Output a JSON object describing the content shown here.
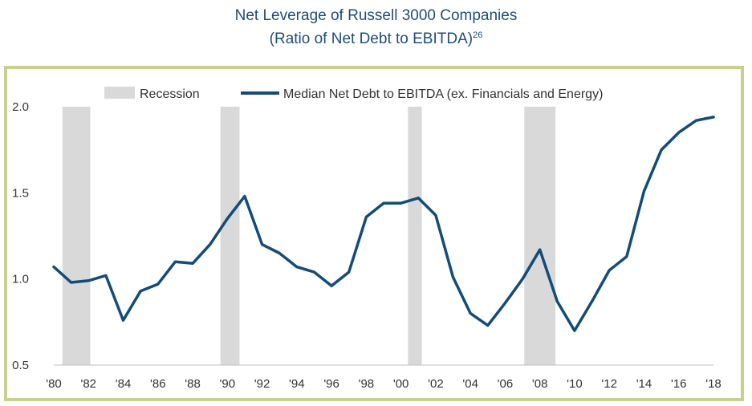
{
  "title_line1": "Net Leverage of Russell 3000 Companies",
  "title_line2": "(Ratio of Net Debt to EBITDA)",
  "title_superscript": "26",
  "chart_data": {
    "type": "line",
    "title": "Net Leverage of Russell 3000 Companies",
    "subtitle": "(Ratio of Net Debt to EBITDA)",
    "legend": {
      "placement": "top",
      "entries": [
        {
          "label": "Recession",
          "kind": "band",
          "color": "#d9d9d9"
        },
        {
          "label": "Median Net Debt to EBITDA (ex. Financials and Energy)",
          "kind": "line",
          "color": "#134b79"
        }
      ]
    },
    "xlim": [
      1980,
      2018
    ],
    "ylim": [
      0.5,
      2.0
    ],
    "y_ticks": [
      0.5,
      1.0,
      1.5,
      2.0
    ],
    "y_tick_labels": [
      "0.5",
      "1.0",
      "1.5",
      "2.0"
    ],
    "x_ticks": [
      1980,
      1982,
      1984,
      1986,
      1988,
      1990,
      1992,
      1994,
      1996,
      1998,
      2000,
      2002,
      2004,
      2006,
      2008,
      2010,
      2012,
      2014,
      2016,
      2018
    ],
    "x_tick_labels": [
      "'80",
      "'82",
      "'84",
      "'86",
      "'88",
      "'90",
      "'92",
      "'94",
      "'96",
      "'98",
      "'00",
      "'02",
      "'04",
      "'06",
      "'08",
      "'10",
      "'12",
      "'14",
      "'16",
      "'18"
    ],
    "grid": false,
    "recessions": [
      {
        "start": 1980.5,
        "end": 1982.1
      },
      {
        "start": 1989.6,
        "end": 1990.7
      },
      {
        "start": 2000.4,
        "end": 2001.2
      },
      {
        "start": 2007.1,
        "end": 2008.9
      }
    ],
    "series": [
      {
        "name": "Median Net Debt to EBITDA (ex. Financials and Energy)",
        "x": [
          1980,
          1981,
          1982,
          1983,
          1984,
          1985,
          1986,
          1987,
          1988,
          1989,
          1990,
          1991,
          1992,
          1993,
          1994,
          1995,
          1996,
          1997,
          1998,
          1999,
          2000,
          2001,
          2002,
          2003,
          2004,
          2005,
          2006,
          2007,
          2008,
          2009,
          2010,
          2011,
          2012,
          2013,
          2014,
          2015,
          2016,
          2017,
          2018
        ],
        "values": [
          1.07,
          0.98,
          0.99,
          1.02,
          0.76,
          0.93,
          0.97,
          1.1,
          1.09,
          1.2,
          1.35,
          1.48,
          1.2,
          1.15,
          1.07,
          1.04,
          0.96,
          1.04,
          1.36,
          1.44,
          1.44,
          1.47,
          1.37,
          1.01,
          0.8,
          0.73,
          0.86,
          1.0,
          1.17,
          0.87,
          0.7,
          0.87,
          1.05,
          1.13,
          1.51,
          1.75,
          1.85,
          1.92,
          1.94
        ]
      }
    ]
  }
}
